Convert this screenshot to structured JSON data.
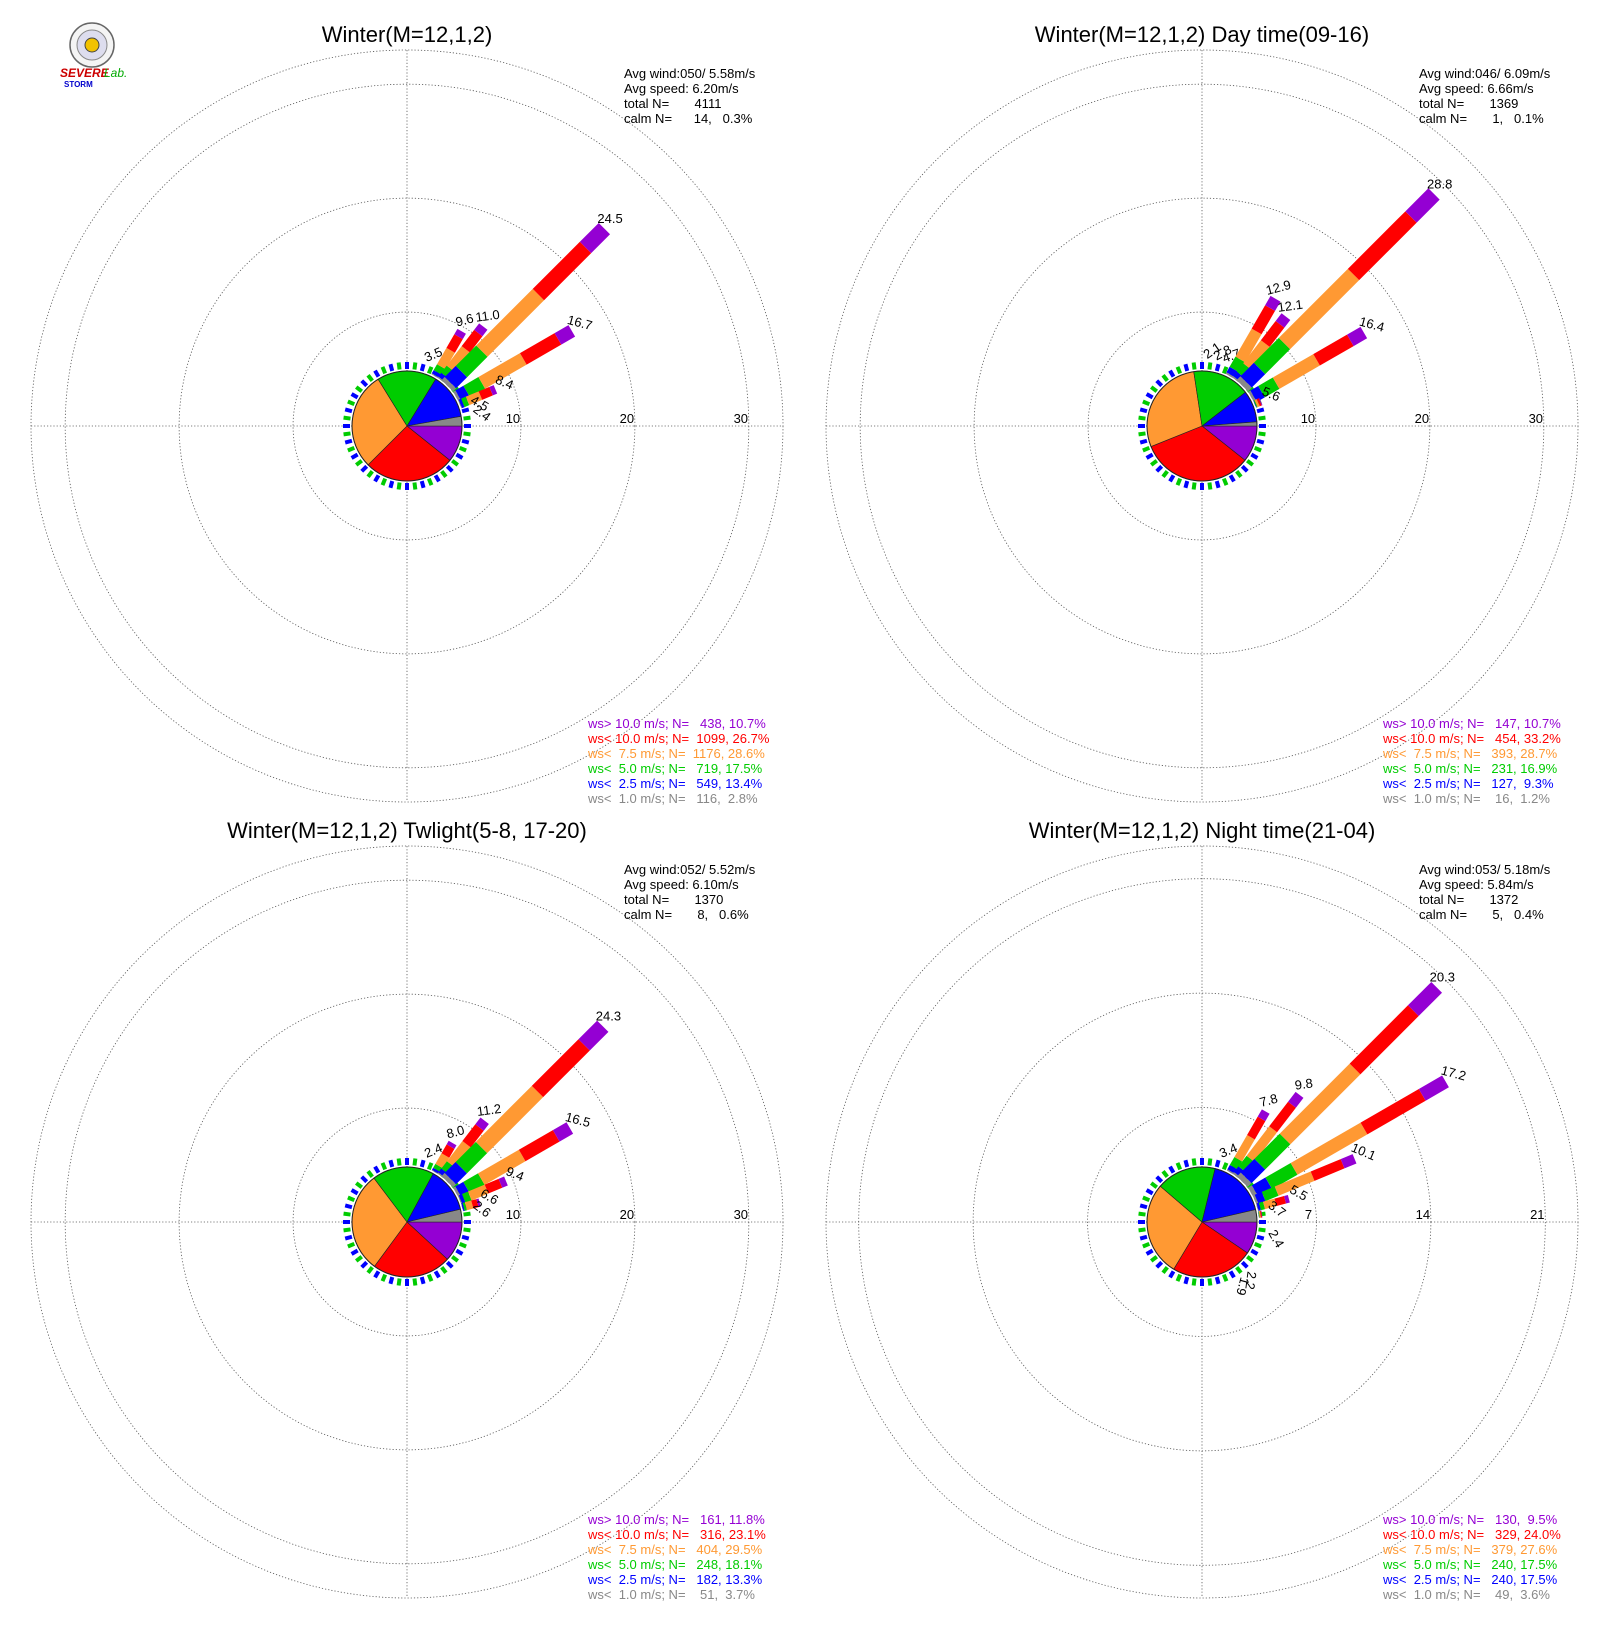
{
  "logo": {
    "text_top": "SEVERE",
    "text_bottom": "STORM",
    "text_lab": "Lab."
  },
  "speed_classes": [
    {
      "key": "gt10",
      "color": "#9400D3"
    },
    {
      "key": "lt10",
      "color": "#FF0000"
    },
    {
      "key": "lt7_5",
      "color": "#FF9933"
    },
    {
      "key": "lt5",
      "color": "#00CC00"
    },
    {
      "key": "lt2_5",
      "color": "#0000FF"
    },
    {
      "key": "lt1",
      "color": "#888888"
    }
  ],
  "chart_data": [
    {
      "type": "wind_rose",
      "title": "Winter(M=12,1,2)",
      "stats": [
        "Avg wind:050/ 5.58m/s",
        "Avg speed: 6.20m/s",
        "total N=       4111",
        "calm N=      14,   0.3%"
      ],
      "rings": [
        10,
        20,
        30
      ],
      "ring_labels": [
        "10",
        "20",
        "30"
      ],
      "rmax": 33,
      "sectors": [
        {
          "dir": 22.5,
          "pct": 3.5,
          "label": "3.5"
        },
        {
          "dir": 30,
          "pct": 9.6,
          "label": "9.6"
        },
        {
          "dir": 37.5,
          "pct": 11.0,
          "label": "11.0"
        },
        {
          "dir": 45,
          "pct": 24.5,
          "label": "24.5"
        },
        {
          "dir": 60,
          "pct": 16.7,
          "label": "16.7"
        },
        {
          "dir": 67.5,
          "pct": 8.4,
          "label": "8.4"
        },
        {
          "dir": 75,
          "pct": 4.5,
          "label": "4.5"
        },
        {
          "dir": 82.5,
          "pct": 2.4,
          "label": "2.4"
        }
      ],
      "legend": [
        {
          "text": "ws> 10.0 m/s; N=   438, 10.7%"
        },
        {
          "text": "ws< 10.0 m/s; N=  1099, 26.7%"
        },
        {
          "text": "ws<  7.5 m/s; N=  1176, 28.6%"
        },
        {
          "text": "ws<  5.0 m/s; N=   719, 17.5%"
        },
        {
          "text": "ws<  2.5 m/s; N=   549, 13.4%"
        },
        {
          "text": "ws<  1.0 m/s; N=   116,  2.8%"
        }
      ],
      "pie": [
        10.7,
        26.7,
        28.6,
        17.5,
        13.4,
        2.8
      ]
    },
    {
      "type": "wind_rose",
      "title": "Winter(M=12,1,2) Day time(09-16)",
      "stats": [
        "Avg wind:046/ 6.09m/s",
        "Avg speed: 6.66m/s",
        "total N=       1369",
        "calm N=       1,   0.1%"
      ],
      "rings": [
        10,
        20,
        30
      ],
      "ring_labels": [
        "10",
        "20",
        "30"
      ],
      "rmax": 33,
      "sectors": [
        {
          "dir": 10,
          "pct": 2.1,
          "label": "2.1"
        },
        {
          "dir": 18,
          "pct": 2.8,
          "label": "2.8"
        },
        {
          "dir": 25,
          "pct": 4.7,
          "label": "4.7"
        },
        {
          "dir": 30,
          "pct": 12.9,
          "label": "12.9"
        },
        {
          "dir": 37.5,
          "pct": 12.1,
          "label": "12.1"
        },
        {
          "dir": 45,
          "pct": 28.8,
          "label": "28.8"
        },
        {
          "dir": 60,
          "pct": 16.4,
          "label": "16.4"
        },
        {
          "dir": 67.5,
          "pct": 5.6,
          "label": "5.6"
        }
      ],
      "legend": [
        {
          "text": "ws> 10.0 m/s; N=   147, 10.7%"
        },
        {
          "text": "ws< 10.0 m/s; N=   454, 33.2%"
        },
        {
          "text": "ws<  7.5 m/s; N=   393, 28.7%"
        },
        {
          "text": "ws<  5.0 m/s; N=   231, 16.9%"
        },
        {
          "text": "ws<  2.5 m/s; N=   127,  9.3%"
        },
        {
          "text": "ws<  1.0 m/s; N=    16,  1.2%"
        }
      ],
      "pie": [
        10.7,
        33.2,
        28.7,
        16.9,
        9.3,
        1.2
      ]
    },
    {
      "type": "wind_rose",
      "title": "Winter(M=12,1,2) Twlight(5-8, 17-20)",
      "stats": [
        "Avg wind:052/ 5.52m/s",
        "Avg speed: 6.10m/s",
        "total N=       1370",
        "calm N=       8,   0.6%"
      ],
      "rings": [
        10,
        20,
        30
      ],
      "ring_labels": [
        "10",
        "20",
        "30"
      ],
      "rmax": 33,
      "sectors": [
        {
          "dir": 22.5,
          "pct": 2.4,
          "label": "2.4"
        },
        {
          "dir": 30,
          "pct": 8.0,
          "label": "8.0"
        },
        {
          "dir": 37.5,
          "pct": 11.2,
          "label": "11.2"
        },
        {
          "dir": 45,
          "pct": 24.3,
          "label": "24.3"
        },
        {
          "dir": 60,
          "pct": 16.5,
          "label": "16.5"
        },
        {
          "dir": 67.5,
          "pct": 9.4,
          "label": "9.4"
        },
        {
          "dir": 75,
          "pct": 6.6,
          "label": "6.6"
        },
        {
          "dir": 82.5,
          "pct": 2.6,
          "label": "2.6"
        }
      ],
      "legend": [
        {
          "text": "ws> 10.0 m/s; N=   161, 11.8%"
        },
        {
          "text": "ws< 10.0 m/s; N=   316, 23.1%"
        },
        {
          "text": "ws<  7.5 m/s; N=   404, 29.5%"
        },
        {
          "text": "ws<  5.0 m/s; N=   248, 18.1%"
        },
        {
          "text": "ws<  2.5 m/s; N=   182, 13.3%"
        },
        {
          "text": "ws<  1.0 m/s; N=    51,  3.7%"
        }
      ],
      "pie": [
        11.8,
        23.1,
        29.5,
        18.1,
        13.3,
        3.7
      ]
    },
    {
      "type": "wind_rose",
      "title": "Winter(M=12,1,2) Night time(21-04)",
      "stats": [
        "Avg wind:053/ 5.18m/s",
        "Avg speed: 5.84m/s",
        "total N=       1372",
        "calm N=       5,   0.4%"
      ],
      "rings": [
        7,
        14,
        21
      ],
      "ring_labels": [
        "7",
        "14",
        "21"
      ],
      "rmax": 23,
      "sectors": [
        {
          "dir": 22.5,
          "pct": 3.4,
          "label": "3.4"
        },
        {
          "dir": 30,
          "pct": 7.8,
          "label": "7.8"
        },
        {
          "dir": 37.5,
          "pct": 9.8,
          "label": "9.8"
        },
        {
          "dir": 45,
          "pct": 20.3,
          "label": "20.3"
        },
        {
          "dir": 60,
          "pct": 17.2,
          "label": "17.2"
        },
        {
          "dir": 67.5,
          "pct": 10.1,
          "label": "10.1"
        },
        {
          "dir": 75,
          "pct": 5.5,
          "label": "5.5"
        },
        {
          "dir": 82.5,
          "pct": 3.7,
          "label": "3.7"
        },
        {
          "dir": 105,
          "pct": 2.4,
          "label": "2.4"
        },
        {
          "dir": 142.5,
          "pct": 2.2,
          "label": "2.2"
        },
        {
          "dir": 150,
          "pct": 1.9,
          "label": "1.9"
        }
      ],
      "legend": [
        {
          "text": "ws> 10.0 m/s; N=   130,  9.5%"
        },
        {
          "text": "ws< 10.0 m/s; N=   329, 24.0%"
        },
        {
          "text": "ws<  7.5 m/s; N=   379, 27.6%"
        },
        {
          "text": "ws<  5.0 m/s; N=   240, 17.5%"
        },
        {
          "text": "ws<  2.5 m/s; N=   240, 17.5%"
        },
        {
          "text": "ws<  1.0 m/s; N=    49,  3.6%"
        }
      ],
      "pie": [
        9.5,
        24.0,
        27.6,
        17.5,
        17.5,
        3.6
      ]
    }
  ]
}
